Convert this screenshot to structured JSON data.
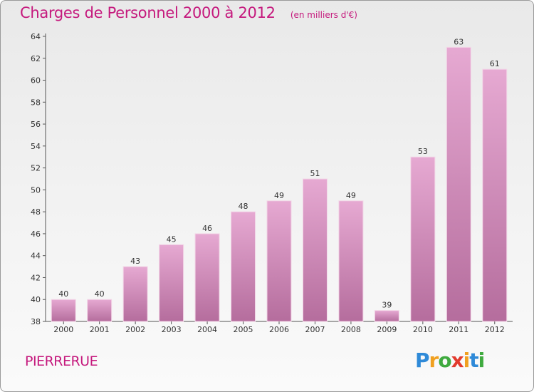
{
  "title": "Charges de Personnel 2000 à 2012",
  "subtitle": "(en milliers d'€)",
  "location": "PIERRERUE",
  "logo": {
    "letters": [
      "P",
      "r",
      "o",
      "x",
      "i",
      "t",
      "i"
    ],
    "colors": [
      "#2f8ad8",
      "#f0a020",
      "#3faa3f",
      "#e23b2e",
      "#f0a020",
      "#2f8ad8",
      "#3faa3f"
    ]
  },
  "colors": {
    "bar": "#d98fbd",
    "text": "#c5197d"
  },
  "chart_data": {
    "type": "bar",
    "categories": [
      "2000",
      "2001",
      "2002",
      "2003",
      "2004",
      "2005",
      "2006",
      "2007",
      "2008",
      "2009",
      "2010",
      "2011",
      "2012"
    ],
    "values": [
      40,
      40,
      43,
      45,
      46,
      48,
      49,
      51,
      49,
      39,
      53,
      63,
      61
    ],
    "data_labels": [
      "40",
      "40",
      "43",
      "45",
      "46",
      "48",
      "49",
      "51",
      "49",
      "39",
      "53",
      "63",
      "61"
    ],
    "ylim": [
      38,
      64
    ],
    "yticks": [
      "38",
      "40",
      "42",
      "44",
      "46",
      "48",
      "50",
      "52",
      "54",
      "56",
      "58",
      "60",
      "62",
      "64"
    ],
    "grid": false,
    "xlabel": "",
    "ylabel": ""
  }
}
